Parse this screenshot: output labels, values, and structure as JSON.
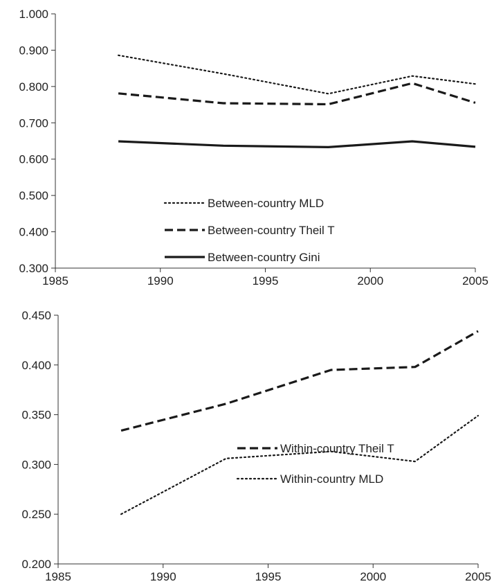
{
  "chart_data": [
    {
      "type": "line",
      "title": "",
      "xlabel": "",
      "ylabel": "",
      "xlim": [
        1985,
        2005
      ],
      "ylim": [
        0.3,
        1.0
      ],
      "xticks": [
        "1985",
        "1990",
        "1995",
        "2000",
        "2005"
      ],
      "yticks": [
        "0.300",
        "0.400",
        "0.500",
        "0.600",
        "0.700",
        "0.800",
        "0.900",
        "1.000"
      ],
      "x": [
        1988,
        1993,
        1998,
        2002,
        2005
      ],
      "legend_position": "lower-center",
      "series": [
        {
          "name": "Between-country MLD",
          "style": "dotted",
          "values": [
            0.886,
            0.835,
            0.78,
            0.829,
            0.807
          ]
        },
        {
          "name": "Between-country Theil T",
          "style": "dashed",
          "values": [
            0.781,
            0.754,
            0.751,
            0.809,
            0.755
          ]
        },
        {
          "name": "Between-country Gini",
          "style": "solid",
          "values": [
            0.649,
            0.637,
            0.633,
            0.649,
            0.634
          ]
        }
      ]
    },
    {
      "type": "line",
      "title": "",
      "xlabel": "",
      "ylabel": "",
      "xlim": [
        1985,
        2005
      ],
      "ylim": [
        0.2,
        0.45
      ],
      "xticks": [
        "1985",
        "1990",
        "1995",
        "2000",
        "2005"
      ],
      "yticks": [
        "0.200",
        "0.250",
        "0.300",
        "0.350",
        "0.400",
        "0.450"
      ],
      "x": [
        1988,
        1993,
        1998,
        2002,
        2005
      ],
      "legend_position": "lower-right",
      "series": [
        {
          "name": "Within-country Theil T",
          "style": "dashed",
          "values": [
            0.334,
            0.361,
            0.395,
            0.398,
            0.434
          ]
        },
        {
          "name": "Within-country MLD",
          "style": "dotted",
          "values": [
            0.25,
            0.306,
            0.313,
            0.303,
            0.349
          ]
        }
      ]
    }
  ],
  "colors": {
    "line": "#1a1a1a",
    "axis": "#333333",
    "text": "#222222"
  }
}
